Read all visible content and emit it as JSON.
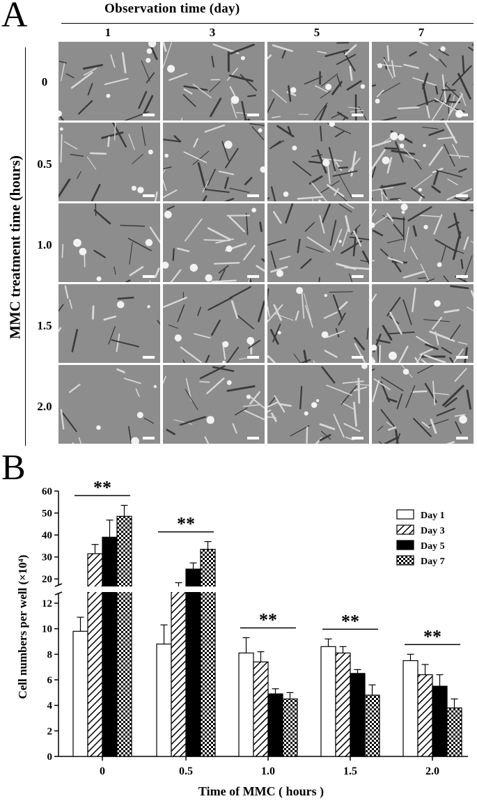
{
  "panel_a": {
    "letter": "A",
    "title": "Observation  time  (day)",
    "columns": [
      "1",
      "3",
      "5",
      "7"
    ],
    "ylabel": "MMC  treatment  time  (hours)",
    "rows": [
      "0",
      "0.5",
      "1.0",
      "1.5",
      "2.0"
    ]
  },
  "panel_b": {
    "letter": "B"
  },
  "chart_data": {
    "type": "bar",
    "categories": [
      "0",
      "0.5",
      "1.0",
      "1.5",
      "2.0"
    ],
    "xlabel": "Time of  MMC ( hours )",
    "ylabel": "Cell  numbers per well (×10⁴)",
    "broken_axis": {
      "lower_range": [
        0,
        12
      ],
      "upper_range": [
        15,
        60
      ],
      "lower_ticks": [
        "0",
        "2",
        "4",
        "6",
        "8",
        "10",
        "12"
      ],
      "upper_ticks": [
        "20",
        "30",
        "40",
        "50",
        "60"
      ]
    },
    "series": [
      {
        "name": "Day 1",
        "pattern": "white",
        "values": [
          9.8,
          8.8,
          8.1,
          8.6,
          7.5
        ],
        "errors": [
          1.1,
          1.5,
          1.2,
          0.6,
          0.5
        ]
      },
      {
        "name": "Day 3",
        "pattern": "hatched",
        "values": [
          31.5,
          15.8,
          7.4,
          8.1,
          6.4
        ],
        "errors": [
          4.2,
          2.5,
          0.8,
          0.5,
          0.8
        ]
      },
      {
        "name": "Day 5",
        "pattern": "black",
        "values": [
          39.0,
          24.5,
          4.9,
          6.5,
          5.5
        ],
        "errors": [
          7.8,
          2.8,
          0.4,
          0.3,
          0.9
        ]
      },
      {
        "name": "Day 7",
        "pattern": "checkered",
        "values": [
          48.5,
          33.5,
          4.5,
          4.8,
          3.8
        ],
        "errors": [
          5.0,
          3.5,
          0.5,
          0.8,
          0.7
        ]
      }
    ],
    "significance": [
      "**",
      "**",
      "**",
      "**",
      "**"
    ],
    "legend_position": "top-right",
    "grid": false
  },
  "colors": {
    "bar_fill_black": "#000000",
    "micrograph_gray": "#8d8d8d"
  }
}
